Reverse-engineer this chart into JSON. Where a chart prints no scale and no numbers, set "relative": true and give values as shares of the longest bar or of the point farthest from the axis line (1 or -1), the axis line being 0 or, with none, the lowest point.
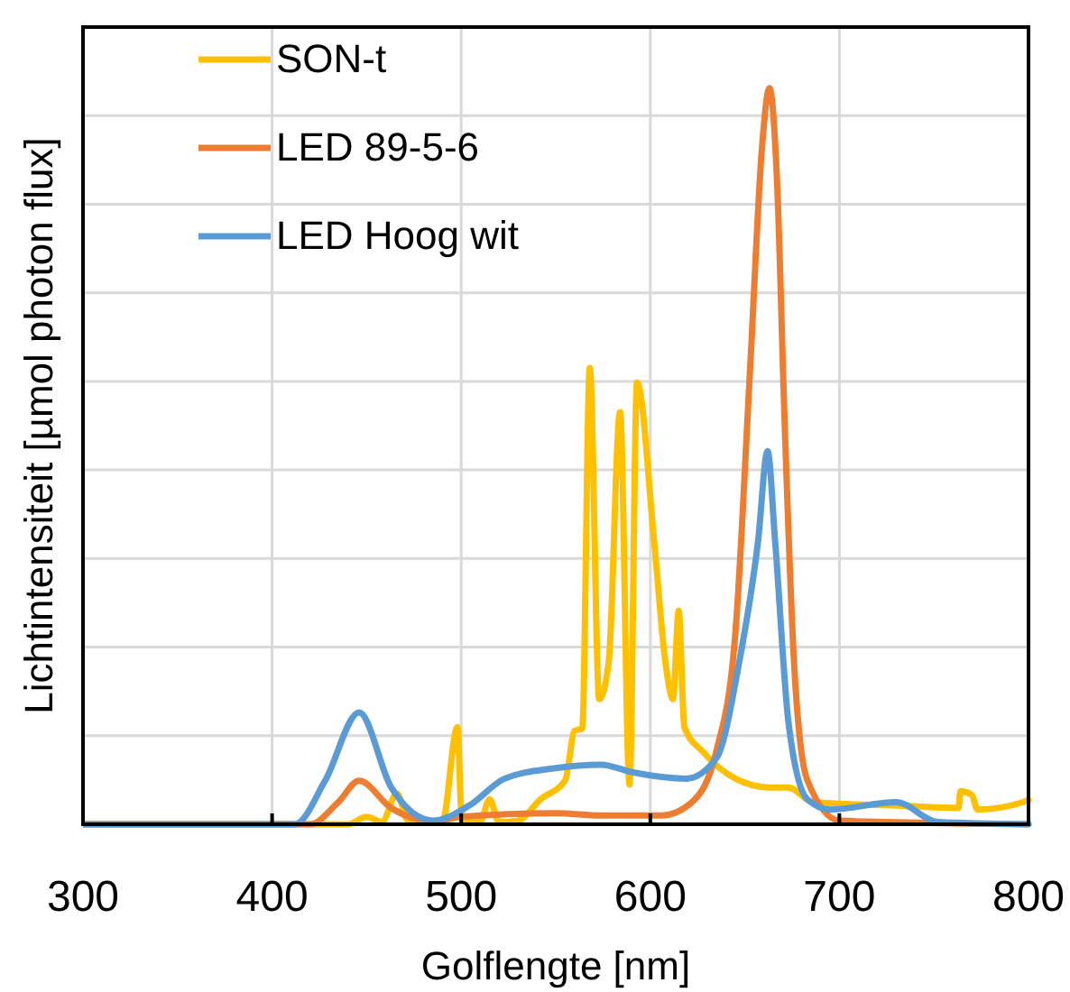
{
  "chart_data": {
    "type": "line",
    "relative": true,
    "xlabel": "Golflengte [nm]",
    "ylabel": "Lichtintensiteit [µmol photon flux]",
    "xlim": [
      300,
      800
    ],
    "xticks": [
      300,
      400,
      500,
      600,
      700,
      800
    ],
    "grid": true,
    "legend": "top left",
    "line_style": "solid",
    "series": [
      {
        "name": "SON-t",
        "color": "#ffc000",
        "x": [
          300,
          440,
          450,
          458,
          466,
          472,
          480,
          490,
          498,
          500,
          503,
          510,
          515,
          520,
          530,
          542,
          555,
          560,
          564,
          568,
          573,
          578,
          584,
          589,
          593,
          602,
          608,
          612,
          615,
          618,
          628,
          645,
          663,
          673,
          686,
          734,
          763,
          764,
          770,
          773,
          797,
          800
        ],
        "values": [
          0,
          0,
          0.01,
          0.003,
          0.042,
          0.005,
          0.005,
          0.003,
          0.132,
          0.02,
          0.003,
          0.003,
          0.034,
          0.003,
          0.005,
          0.034,
          0.06,
          0.127,
          0.13,
          0.62,
          0.17,
          0.22,
          0.56,
          0.054,
          0.6,
          0.385,
          0.22,
          0.17,
          0.29,
          0.132,
          0.098,
          0.062,
          0.05,
          0.05,
          0.03,
          0.025,
          0.022,
          0.045,
          0.04,
          0.02,
          0.03,
          0.033
        ]
      },
      {
        "name": "LED 89-5-6",
        "color": "#ed7d31",
        "x": [
          300,
          420,
          435,
          446,
          463,
          485,
          500,
          550,
          574,
          606,
          622,
          635,
          645,
          653,
          659,
          663,
          667,
          671,
          676,
          683,
          700,
          800
        ],
        "values": [
          0,
          0,
          0.03,
          0.059,
          0.022,
          0.004,
          0.01,
          0.015,
          0.012,
          0.012,
          0.03,
          0.1,
          0.26,
          0.63,
          0.917,
          1,
          0.875,
          0.55,
          0.22,
          0.06,
          0.005,
          0
        ]
      },
      {
        "name": "LED Hoog wit",
        "color": "#5b9bd5",
        "x": [
          300,
          412,
          428,
          446,
          463,
          485,
          504,
          523,
          549,
          574,
          590,
          619,
          635,
          647,
          657,
          662,
          666,
          673,
          683,
          695,
          730,
          752,
          800
        ],
        "values": [
          0,
          0,
          0.059,
          0.152,
          0.05,
          0.005,
          0.025,
          0.062,
          0.076,
          0.081,
          0.071,
          0.062,
          0.09,
          0.22,
          0.385,
          0.507,
          0.385,
          0.14,
          0.034,
          0.02,
          0.03,
          0.003,
          0
        ]
      }
    ]
  }
}
